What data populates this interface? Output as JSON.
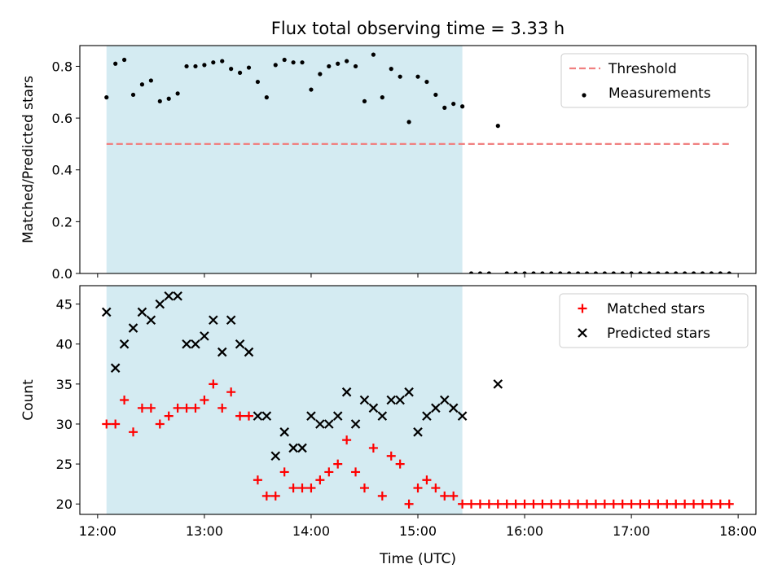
{
  "title": "Flux total observing time = 3.33 h",
  "colors": {
    "threshold": "#f08080",
    "measurements": "#000000",
    "matched": "#ff0000",
    "predicted": "#000000",
    "shade": "#add8e6"
  },
  "chart_data": [
    {
      "type": "scatter",
      "ylabel": "Matched/Predicted stars",
      "xlim": [
        "11:50",
        "18:10"
      ],
      "ylim": [
        0,
        0.88
      ],
      "yticks": [
        "0.0",
        "0.2",
        "0.4",
        "0.6",
        "0.8"
      ],
      "shaded_region": [
        "12:05",
        "15:25"
      ],
      "legend": {
        "position": "upper right",
        "entries": [
          "Threshold",
          "Measurements"
        ]
      },
      "threshold": {
        "name": "Threshold",
        "value": 0.5,
        "x": [
          "12:05",
          "17:55"
        ],
        "style": "dashed"
      },
      "series": [
        {
          "name": "Measurements",
          "x": [
            "12:05",
            "12:10",
            "12:15",
            "12:20",
            "12:25",
            "12:30",
            "12:35",
            "12:40",
            "12:45",
            "12:50",
            "12:55",
            "13:00",
            "13:05",
            "13:10",
            "13:15",
            "13:20",
            "13:25",
            "13:30",
            "13:35",
            "13:40",
            "13:45",
            "13:50",
            "13:55",
            "14:00",
            "14:05",
            "14:10",
            "14:15",
            "14:20",
            "14:25",
            "14:30",
            "14:35",
            "14:40",
            "14:45",
            "14:50",
            "14:55",
            "15:00",
            "15:05",
            "15:10",
            "15:15",
            "15:20",
            "15:25",
            "15:30",
            "15:35",
            "15:40",
            "15:45",
            "15:50",
            "15:55",
            "16:00",
            "16:05",
            "16:10",
            "16:15",
            "16:20",
            "16:25",
            "16:30",
            "16:35",
            "16:40",
            "16:45",
            "16:50",
            "16:55",
            "17:00",
            "17:05",
            "17:10",
            "17:15",
            "17:20",
            "17:25",
            "17:30",
            "17:35",
            "17:40",
            "17:45",
            "17:50",
            "17:55"
          ],
          "y": [
            0.68,
            0.81,
            0.825,
            0.69,
            0.73,
            0.745,
            0.665,
            0.675,
            0.695,
            0.8,
            0.8,
            0.805,
            0.815,
            0.82,
            0.79,
            0.775,
            0.795,
            0.74,
            0.68,
            0.805,
            0.825,
            0.815,
            0.815,
            0.71,
            0.77,
            0.8,
            0.81,
            0.82,
            0.8,
            0.665,
            0.845,
            0.68,
            0.79,
            0.76,
            0.585,
            0.76,
            0.74,
            0.69,
            0.64,
            0.655,
            0.645,
            0.0,
            0.0,
            0.0,
            0.57,
            0.0,
            0.0,
            0.0,
            0.0,
            0.0,
            0.0,
            0.0,
            0.0,
            0.0,
            0.0,
            0.0,
            0.0,
            0.0,
            0.0,
            0.0,
            0.0,
            0.0,
            0.0,
            0.0,
            0.0,
            0.0,
            0.0,
            0.0,
            0.0,
            0.0,
            0.0
          ]
        }
      ]
    },
    {
      "type": "scatter",
      "xlabel": "Time (UTC)",
      "ylabel": "Count",
      "xlim": [
        "11:50",
        "18:10"
      ],
      "ylim": [
        18.7,
        47.3
      ],
      "xticks": [
        "12:00",
        "13:00",
        "14:00",
        "15:00",
        "16:00",
        "17:00",
        "18:00"
      ],
      "yticks": [
        "20",
        "25",
        "30",
        "35",
        "40",
        "45"
      ],
      "shaded_region": [
        "12:05",
        "15:25"
      ],
      "legend": {
        "position": "upper right",
        "entries": [
          "Matched stars",
          "Predicted stars"
        ]
      },
      "series": [
        {
          "name": "Matched stars",
          "marker": "+",
          "x": [
            "12:05",
            "12:10",
            "12:15",
            "12:20",
            "12:25",
            "12:30",
            "12:35",
            "12:40",
            "12:45",
            "12:50",
            "12:55",
            "13:00",
            "13:05",
            "13:10",
            "13:15",
            "13:20",
            "13:25",
            "13:30",
            "13:35",
            "13:40",
            "13:45",
            "13:50",
            "13:55",
            "14:00",
            "14:05",
            "14:10",
            "14:15",
            "14:20",
            "14:25",
            "14:30",
            "14:35",
            "14:40",
            "14:45",
            "14:50",
            "14:55",
            "15:00",
            "15:05",
            "15:10",
            "15:15",
            "15:20",
            "15:25",
            "15:30",
            "15:35",
            "15:40",
            "15:45",
            "15:50",
            "15:55",
            "16:00",
            "16:05",
            "16:10",
            "16:15",
            "16:20",
            "16:25",
            "16:30",
            "16:35",
            "16:40",
            "16:45",
            "16:50",
            "16:55",
            "17:00",
            "17:05",
            "17:10",
            "17:15",
            "17:20",
            "17:25",
            "17:30",
            "17:35",
            "17:40",
            "17:45",
            "17:50",
            "17:55"
          ],
          "y": [
            30,
            30,
            33,
            29,
            32,
            32,
            30,
            31,
            32,
            32,
            32,
            33,
            35,
            32,
            34,
            31,
            31,
            23,
            21,
            21,
            24,
            22,
            22,
            22,
            23,
            24,
            25,
            28,
            24,
            22,
            27,
            21,
            26,
            25,
            20,
            22,
            23,
            22,
            21,
            21,
            20,
            20,
            20,
            20,
            20,
            20,
            20,
            20,
            20,
            20,
            20,
            20,
            20,
            20,
            20,
            20,
            20,
            20,
            20,
            20,
            20,
            20,
            20,
            20,
            20,
            20,
            20,
            20,
            20,
            20,
            20
          ]
        },
        {
          "name": "Predicted stars",
          "marker": "x",
          "x": [
            "12:05",
            "12:10",
            "12:15",
            "12:20",
            "12:25",
            "12:30",
            "12:35",
            "12:40",
            "12:45",
            "12:50",
            "12:55",
            "13:00",
            "13:05",
            "13:10",
            "13:15",
            "13:20",
            "13:25",
            "13:30",
            "13:35",
            "13:40",
            "13:45",
            "13:50",
            "13:55",
            "14:00",
            "14:05",
            "14:10",
            "14:15",
            "14:20",
            "14:25",
            "14:30",
            "14:35",
            "14:40",
            "14:45",
            "14:50",
            "14:55",
            "15:00",
            "15:05",
            "15:10",
            "15:15",
            "15:20",
            "15:25",
            "15:45"
          ],
          "y": [
            44,
            37,
            40,
            42,
            44,
            43,
            45,
            46,
            46,
            40,
            40,
            41,
            43,
            39,
            43,
            40,
            39,
            31,
            31,
            26,
            29,
            27,
            27,
            31,
            30,
            30,
            31,
            34,
            30,
            33,
            32,
            31,
            33,
            33,
            34,
            29,
            31,
            32,
            33,
            32,
            31,
            35
          ]
        }
      ]
    }
  ]
}
